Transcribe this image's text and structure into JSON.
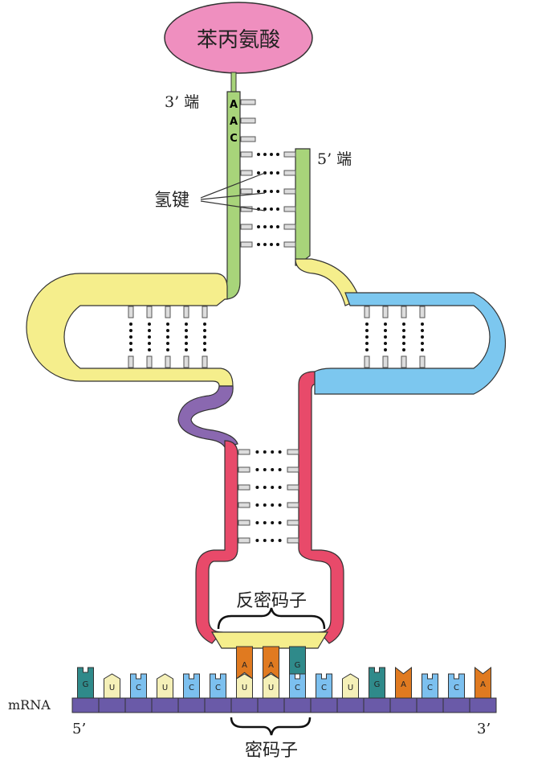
{
  "diagram": {
    "amino_acid": "苯丙氨酸",
    "label_3end_trna": "3’ 端",
    "label_5end_trna": "5’ 端",
    "acceptor_bases": [
      "A",
      "A",
      "C"
    ],
    "hydrogen_bond_label": "氢键",
    "anticodon_label": "反密码子",
    "anticodon_bases": [
      "A",
      "A",
      "G"
    ],
    "mrna_label": "mRNA",
    "mrna_5": "5’",
    "mrna_3": "3’",
    "codon_label": "密码子",
    "mrna_bases": [
      "G",
      "U",
      "C",
      "U",
      "C",
      "C",
      "U",
      "U",
      "C",
      "C",
      "U",
      "G",
      "A",
      "C",
      "C",
      "A"
    ]
  },
  "colors": {
    "amino_acid": "#ef8fbf",
    "acceptor_stem": "#a8d47a",
    "d_loop": "#f5ee8c",
    "t_loop": "#7cc7ef",
    "anticodon_stem": "#e84a6a",
    "variable_loop": "#8a68b0",
    "anticodon_region": "#f5ee8c",
    "mrna_backbone": "#6a5aa8",
    "base_G": "#2f8a8a",
    "base_A": "#e07a20",
    "base_C": "#7cc0ef",
    "base_U": "#f5f0b8"
  }
}
